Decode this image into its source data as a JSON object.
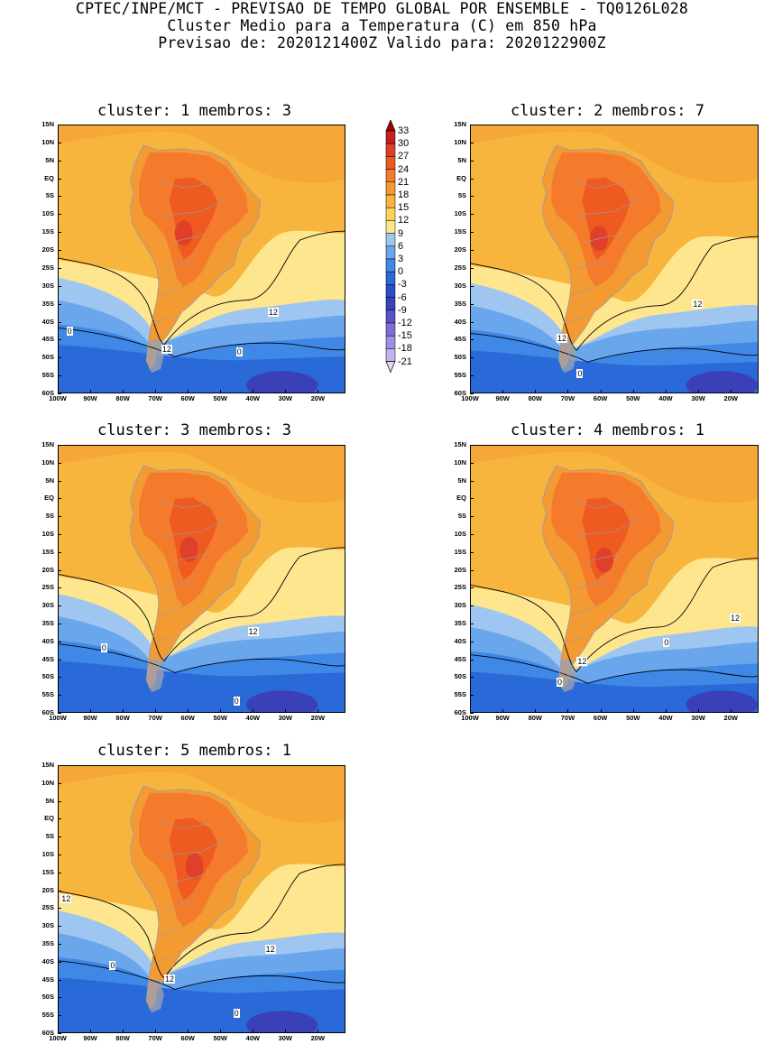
{
  "header": {
    "line1": "CPTEC/INPE/MCT - PREVISAO DE TEMPO GLOBAL POR ENSEMBLE - TQ0126L028",
    "line2": "Cluster Medio para a Temperatura (C) em 850 hPa",
    "line3": "Previsao de: 2020121400Z   Valido para: 2020122900Z"
  },
  "lat_labels": [
    "15N",
    "10N",
    "5N",
    "EQ",
    "5S",
    "10S",
    "15S",
    "20S",
    "25S",
    "30S",
    "35S",
    "40S",
    "45S",
    "50S",
    "55S",
    "60S"
  ],
  "lon_labels": [
    "100W",
    "90W",
    "80W",
    "70W",
    "60W",
    "50W",
    "40W",
    "30W",
    "20W"
  ],
  "panels": [
    {
      "title": "cluster: 1   membros: 3",
      "contour_labels": [
        "0",
        "12",
        "0",
        "12"
      ]
    },
    {
      "title": "cluster: 2   membros: 7",
      "contour_labels": [
        "12",
        "12",
        "0"
      ]
    },
    {
      "title": "cluster: 3   membros: 3",
      "contour_labels": [
        "0",
        "12",
        "0"
      ]
    },
    {
      "title": "cluster: 4   membros: 1",
      "contour_labels": [
        "12",
        "0",
        "12",
        "0"
      ]
    },
    {
      "title": "cluster: 5   membros: 1",
      "contour_labels": [
        "12",
        "0",
        "12",
        "12",
        "0"
      ]
    }
  ],
  "colorbar": {
    "levels": [
      "33",
      "30",
      "27",
      "24",
      "21",
      "18",
      "15",
      "12",
      "9",
      "6",
      "3",
      "0",
      "-3",
      "-6",
      "-9",
      "-12",
      "-15",
      "-18",
      "-21"
    ],
    "colors": [
      "#a00000",
      "#c81e1e",
      "#e0402a",
      "#ee5a20",
      "#f47a2c",
      "#f39a33",
      "#f8b53e",
      "#fcd45a",
      "#fde68e",
      "#9ec6f0",
      "#6aa6ec",
      "#3f88e6",
      "#2a6ad8",
      "#2a4ec4",
      "#3a40b8",
      "#5a52c8",
      "#7c6ed8",
      "#a08ee6",
      "#c2b2f0",
      "#e0d6f8"
    ]
  }
}
